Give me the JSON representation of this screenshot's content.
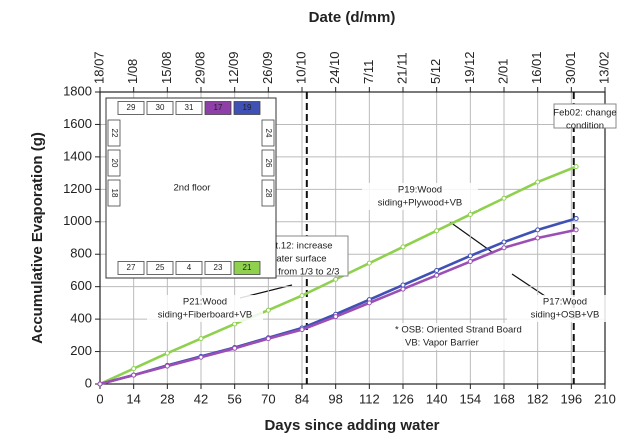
{
  "chart_data": {
    "type": "line",
    "title": "Date (d/mm)",
    "x_label": "Days since adding water",
    "y_label": "Accumulative Evaporation (g)",
    "xlim": [
      0,
      210
    ],
    "xticks": [
      0,
      14,
      28,
      42,
      56,
      70,
      84,
      98,
      112,
      126,
      140,
      154,
      168,
      182,
      196,
      210
    ],
    "x2ticks": [
      {
        "value": 0,
        "label": "18/07"
      },
      {
        "value": 14,
        "label": "1/08"
      },
      {
        "value": 28,
        "label": "15/08"
      },
      {
        "value": 42,
        "label": "29/08"
      },
      {
        "value": 56,
        "label": "12/09"
      },
      {
        "value": 70,
        "label": "26/09"
      },
      {
        "value": 84,
        "label": "10/10"
      },
      {
        "value": 98,
        "label": "24/10"
      },
      {
        "value": 112,
        "label": "7/11"
      },
      {
        "value": 126,
        "label": "21/11"
      },
      {
        "value": 140,
        "label": "5/12"
      },
      {
        "value": 154,
        "label": "19/12"
      },
      {
        "value": 168,
        "label": "2/01"
      },
      {
        "value": 182,
        "label": "16/01"
      },
      {
        "value": 196,
        "label": "30/01"
      },
      {
        "value": 210,
        "label": "13/02"
      }
    ],
    "ylim": [
      0,
      1800
    ],
    "yticks": [
      0,
      200,
      400,
      600,
      800,
      1000,
      1200,
      1400,
      1600,
      1800
    ],
    "grid": true,
    "x": [
      0,
      14,
      28,
      42,
      56,
      70,
      84,
      98,
      112,
      126,
      140,
      154,
      168,
      182,
      198
    ],
    "series": [
      {
        "color": "#8fd14f",
        "values": [
          0,
          95,
          190,
          280,
          370,
          455,
          545,
          645,
          745,
          845,
          945,
          1045,
          1145,
          1245,
          1340
        ]
      },
      {
        "color": "#3f51b5",
        "values": [
          0,
          55,
          115,
          170,
          225,
          285,
          345,
          430,
          520,
          610,
          700,
          790,
          875,
          950,
          1020
        ]
      },
      {
        "color": "#9b4fb5",
        "values": [
          0,
          55,
          110,
          165,
          220,
          280,
          335,
          415,
          500,
          585,
          670,
          755,
          840,
          900,
          950
        ]
      }
    ],
    "vlines": [
      86,
      197
    ],
    "annotations": [
      {
        "lines": [
          "P21:Wood",
          "siding+Fiberboard+VB"
        ]
      },
      {
        "lines": [
          "Oct.12: increase",
          "water surface",
          "area from 1/3 to 2/3"
        ]
      },
      {
        "lines": [
          "P19:Wood",
          "siding+Plywood+VB"
        ]
      },
      {
        "lines": [
          "P17:Wood",
          "siding+OSB+VB"
        ]
      },
      {
        "lines": [
          "Feb02: change",
          "condition"
        ]
      },
      {
        "lines": [
          "*  OSB: Oriented Strand Board",
          "VB:    Vapor Barrier"
        ]
      }
    ],
    "inset": {
      "label": "2nd floor",
      "top": [
        "29",
        "30",
        "31",
        {
          "label": "17",
          "color": "#8e3fa8"
        },
        {
          "label": "19",
          "color": "#3f51b5"
        }
      ],
      "left": [
        "22",
        "20",
        "18"
      ],
      "right": [
        "24",
        "26",
        "28"
      ],
      "bottom": [
        "27",
        "25",
        "4",
        "23",
        {
          "label": "21",
          "color": "#8fd14f"
        }
      ]
    }
  }
}
